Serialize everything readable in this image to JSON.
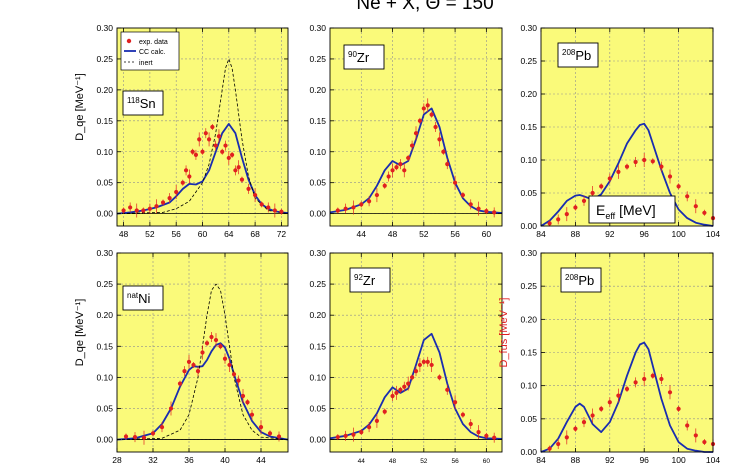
{
  "figure": {
    "title": "Ne + X, Θ = 150",
    "legend": {
      "data_label": "exp. data",
      "cc_label": "CC calc.",
      "inert_label": "inert"
    },
    "colors": {
      "panel_bg": "#fafa7a",
      "data": "#e02020",
      "cc": "#1a2db0",
      "inert": "#000000",
      "grid": "#8f8f8f"
    }
  },
  "chart_data": [
    {
      "id": "p118sn",
      "type": "line",
      "label": "118Sn",
      "label_parts": [
        "118",
        "Sn"
      ],
      "ylabel": "D_qe [MeV⁻¹]",
      "ylabel_color": "#000000",
      "show_legend": true,
      "xlim": [
        47,
        73
      ],
      "ylim": [
        -0.02,
        0.3
      ],
      "xticks": [
        48,
        52,
        56,
        60,
        64,
        68,
        72
      ],
      "yticks": [
        0.0,
        0.05,
        0.1,
        0.15,
        0.2,
        0.25,
        0.3
      ],
      "grid": true,
      "series": [
        {
          "name": "CC calc.",
          "kind": "line",
          "x": [
            47,
            49,
            51,
            53,
            55,
            56,
            57,
            58,
            59,
            60,
            61,
            62,
            63,
            64,
            65,
            66,
            67,
            68,
            69,
            70,
            71,
            72,
            73
          ],
          "y": [
            0.0,
            0.002,
            0.005,
            0.01,
            0.018,
            0.028,
            0.04,
            0.048,
            0.047,
            0.052,
            0.07,
            0.1,
            0.13,
            0.145,
            0.13,
            0.09,
            0.055,
            0.03,
            0.015,
            0.008,
            0.004,
            0.002,
            0.001
          ]
        },
        {
          "name": "inert",
          "kind": "dashed",
          "x": [
            47,
            54,
            56,
            58,
            60,
            61,
            62,
            63,
            63.5,
            64,
            64.5,
            65,
            66,
            67,
            68,
            70,
            73
          ],
          "y": [
            0.0,
            0.002,
            0.008,
            0.02,
            0.05,
            0.08,
            0.13,
            0.2,
            0.235,
            0.25,
            0.235,
            0.2,
            0.12,
            0.06,
            0.025,
            0.005,
            0.0
          ]
        },
        {
          "name": "exp. data",
          "kind": "points",
          "x": [
            48,
            49,
            50,
            51,
            52,
            53,
            54,
            55,
            56,
            57,
            57.5,
            58,
            58.5,
            59,
            59.5,
            60,
            60.5,
            61,
            61.5,
            62,
            62.5,
            63,
            63.5,
            64,
            64.5,
            65,
            65.5,
            66,
            67,
            68,
            69,
            70,
            71,
            72
          ],
          "y": [
            0.005,
            0.01,
            0.005,
            0.005,
            0.008,
            0.012,
            0.018,
            0.025,
            0.035,
            0.05,
            0.07,
            0.06,
            0.1,
            0.095,
            0.12,
            0.1,
            0.13,
            0.12,
            0.14,
            0.11,
            0.125,
            0.1,
            0.11,
            0.09,
            0.095,
            0.07,
            0.075,
            0.055,
            0.04,
            0.03,
            0.015,
            0.01,
            0.005,
            0.003
          ]
        }
      ]
    },
    {
      "id": "p90zr",
      "type": "line",
      "label": "90Zr",
      "label_parts": [
        "90",
        "Zr"
      ],
      "ylabel": "",
      "show_legend": false,
      "xlim": [
        40,
        62
      ],
      "ylim": [
        -0.02,
        0.3
      ],
      "xticks": [
        44,
        48,
        52,
        56,
        60
      ],
      "yticks": [
        0.0,
        0.05,
        0.1,
        0.15,
        0.2,
        0.25,
        0.3
      ],
      "grid": true,
      "series": [
        {
          "name": "CC calc.",
          "kind": "line",
          "x": [
            40,
            42,
            44,
            45,
            46,
            47,
            48,
            49,
            50,
            51,
            52,
            53,
            54,
            55,
            56,
            57,
            58,
            59,
            60,
            62
          ],
          "y": [
            0.002,
            0.006,
            0.015,
            0.025,
            0.045,
            0.07,
            0.085,
            0.078,
            0.085,
            0.12,
            0.16,
            0.17,
            0.14,
            0.09,
            0.05,
            0.025,
            0.012,
            0.005,
            0.003,
            0.001
          ]
        },
        {
          "name": "exp. data",
          "kind": "points",
          "x": [
            41,
            42,
            43,
            44,
            45,
            46,
            47,
            47.5,
            48,
            48.5,
            49,
            49.5,
            50,
            50.5,
            51,
            51.5,
            52,
            52.5,
            53,
            53.5,
            54,
            54.5,
            55,
            56,
            57,
            58,
            59,
            60,
            61
          ],
          "y": [
            0.005,
            0.008,
            0.01,
            0.015,
            0.02,
            0.03,
            0.045,
            0.06,
            0.07,
            0.075,
            0.08,
            0.07,
            0.09,
            0.11,
            0.13,
            0.15,
            0.17,
            0.175,
            0.16,
            0.14,
            0.12,
            0.1,
            0.08,
            0.05,
            0.03,
            0.015,
            0.008,
            0.004,
            0.002
          ]
        }
      ]
    },
    {
      "id": "p208pb_top",
      "type": "line",
      "label": "208Pb",
      "label_parts": [
        "208",
        "Pb"
      ],
      "ylabel": "",
      "show_legend": false,
      "energy_label": true,
      "energy_label_parts": [
        "E",
        "eff",
        " [MeV]"
      ],
      "xlim": [
        84,
        104
      ],
      "ylim": [
        0.0,
        0.3
      ],
      "xticks": [
        84,
        88,
        92,
        96,
        100,
        104
      ],
      "yticks": [
        0.0,
        0.05,
        0.1,
        0.15,
        0.2,
        0.25,
        0.3
      ],
      "grid": true,
      "series": [
        {
          "name": "CC calc.",
          "kind": "line",
          "x": [
            84,
            85,
            86,
            87,
            88,
            88.5,
            89,
            90,
            91,
            92,
            93,
            94,
            95,
            95.5,
            96,
            96.5,
            97,
            98,
            99,
            100,
            101,
            102,
            103,
            104
          ],
          "y": [
            0.0,
            0.008,
            0.022,
            0.038,
            0.046,
            0.047,
            0.045,
            0.04,
            0.048,
            0.068,
            0.095,
            0.125,
            0.145,
            0.153,
            0.155,
            0.145,
            0.125,
            0.085,
            0.05,
            0.025,
            0.012,
            0.005,
            0.002,
            0.0
          ]
        },
        {
          "name": "exp. data",
          "kind": "points",
          "x": [
            85,
            86,
            87,
            88,
            89,
            90,
            91,
            92,
            93,
            94,
            95,
            96,
            97,
            98,
            99,
            100,
            101,
            102,
            103,
            104
          ],
          "y": [
            0.004,
            0.01,
            0.018,
            0.028,
            0.038,
            0.05,
            0.06,
            0.072,
            0.082,
            0.09,
            0.097,
            0.1,
            0.098,
            0.09,
            0.075,
            0.06,
            0.045,
            0.03,
            0.02,
            0.012
          ]
        }
      ]
    },
    {
      "id": "pnatni",
      "type": "line",
      "label": "natNi",
      "label_parts": [
        "nat",
        "Ni"
      ],
      "ylabel": "D_qe [MeV⁻¹]",
      "ylabel_color": "#000000",
      "show_legend": false,
      "xlim": [
        28,
        47
      ],
      "ylim": [
        -0.02,
        0.3
      ],
      "xticks": [
        28,
        32,
        36,
        40,
        44
      ],
      "yticks": [
        0.0,
        0.05,
        0.1,
        0.15,
        0.2,
        0.25,
        0.3
      ],
      "grid": true,
      "series": [
        {
          "name": "CC calc.",
          "kind": "line",
          "x": [
            28,
            30,
            32,
            33,
            34,
            35,
            36,
            36.5,
            37,
            37.5,
            38,
            38.5,
            39,
            39.5,
            40,
            40.5,
            41,
            42,
            43,
            44,
            45,
            47
          ],
          "y": [
            0.0,
            0.002,
            0.01,
            0.025,
            0.05,
            0.085,
            0.112,
            0.118,
            0.117,
            0.118,
            0.128,
            0.142,
            0.152,
            0.155,
            0.148,
            0.13,
            0.105,
            0.06,
            0.03,
            0.012,
            0.005,
            0.0
          ]
        },
        {
          "name": "inert",
          "kind": "dashed",
          "x": [
            28,
            33,
            35,
            36,
            37,
            37.5,
            38,
            38.5,
            39,
            39.5,
            40,
            40.5,
            41,
            42,
            43,
            44,
            47
          ],
          "y": [
            0.0,
            0.002,
            0.015,
            0.04,
            0.1,
            0.15,
            0.2,
            0.24,
            0.25,
            0.24,
            0.2,
            0.15,
            0.1,
            0.04,
            0.015,
            0.004,
            0.0
          ]
        },
        {
          "name": "exp. data",
          "kind": "points",
          "x": [
            29,
            30,
            31,
            32,
            33,
            34,
            35,
            35.5,
            36,
            36.5,
            37,
            37.5,
            38,
            38.5,
            39,
            39.5,
            40,
            40.5,
            41,
            41.5,
            42,
            42.5,
            43,
            44,
            45,
            46
          ],
          "y": [
            0.005,
            0.004,
            0.003,
            0.01,
            0.02,
            0.05,
            0.09,
            0.11,
            0.125,
            0.12,
            0.11,
            0.14,
            0.155,
            0.165,
            0.16,
            0.15,
            0.13,
            0.12,
            0.105,
            0.095,
            0.07,
            0.06,
            0.04,
            0.02,
            0.01,
            0.005
          ]
        }
      ]
    },
    {
      "id": "p92zr",
      "type": "line",
      "label": "92Zr",
      "label_parts": [
        "92",
        "Zr"
      ],
      "ylabel": "",
      "show_legend": false,
      "xlim": [
        40,
        62
      ],
      "ylim": [
        -0.02,
        0.3
      ],
      "xticks": [
        44,
        48,
        52,
        56,
        60
      ],
      "yticks": [
        0.0,
        0.05,
        0.1,
        0.15,
        0.2,
        0.25,
        0.3
      ],
      "grid": true,
      "series": [
        {
          "name": "CC calc.",
          "kind": "line",
          "x": [
            40,
            42,
            44,
            45,
            46,
            47,
            48,
            49,
            50,
            51,
            52,
            53,
            54,
            55,
            56,
            57,
            58,
            59,
            60,
            62
          ],
          "y": [
            0.002,
            0.006,
            0.014,
            0.024,
            0.042,
            0.068,
            0.084,
            0.075,
            0.082,
            0.12,
            0.16,
            0.17,
            0.14,
            0.09,
            0.05,
            0.025,
            0.012,
            0.005,
            0.002,
            0.001
          ]
        },
        {
          "name": "exp. data",
          "kind": "points",
          "x": [
            41,
            42,
            43,
            44,
            45,
            46,
            47,
            48,
            48.5,
            49,
            49.5,
            50,
            50.5,
            51,
            51.5,
            52,
            52.5,
            53,
            54,
            55,
            56,
            57,
            58,
            59,
            60,
            61
          ],
          "y": [
            0.004,
            0.006,
            0.008,
            0.012,
            0.02,
            0.03,
            0.045,
            0.07,
            0.075,
            0.08,
            0.085,
            0.09,
            0.1,
            0.11,
            0.12,
            0.125,
            0.125,
            0.12,
            0.1,
            0.08,
            0.06,
            0.04,
            0.025,
            0.012,
            0.006,
            0.003
          ]
        }
      ]
    },
    {
      "id": "p208pb_bot",
      "type": "line",
      "label": "208Pb",
      "label_parts": [
        "208",
        "Pb"
      ],
      "ylabel": "D_fus [MeV⁻¹]",
      "ylabel_color": "#e02020",
      "show_legend": false,
      "xlim": [
        84,
        104
      ],
      "ylim": [
        0.0,
        0.3
      ],
      "xticks": [
        84,
        88,
        92,
        96,
        100,
        104
      ],
      "yticks": [
        0.0,
        0.05,
        0.1,
        0.15,
        0.2,
        0.25,
        0.3
      ],
      "grid": true,
      "series": [
        {
          "name": "CC calc.",
          "kind": "line",
          "x": [
            84,
            85,
            86,
            87,
            88,
            88.5,
            89,
            90,
            91,
            92,
            93,
            94,
            95,
            95.5,
            96,
            96.5,
            97,
            98,
            99,
            100,
            101,
            102,
            103,
            104
          ],
          "y": [
            0.0,
            0.005,
            0.02,
            0.045,
            0.068,
            0.073,
            0.068,
            0.042,
            0.03,
            0.045,
            0.075,
            0.115,
            0.15,
            0.162,
            0.165,
            0.155,
            0.13,
            0.08,
            0.04,
            0.015,
            0.005,
            0.002,
            0.0,
            0.0
          ]
        },
        {
          "name": "exp. data",
          "kind": "points",
          "x": [
            85,
            86,
            87,
            88,
            89,
            90,
            91,
            92,
            93,
            94,
            95,
            96,
            97,
            98,
            99,
            100,
            101,
            102,
            103,
            104
          ],
          "y": [
            0.005,
            0.012,
            0.022,
            0.035,
            0.045,
            0.055,
            0.065,
            0.075,
            0.085,
            0.095,
            0.105,
            0.11,
            0.115,
            0.11,
            0.09,
            0.065,
            0.04,
            0.025,
            0.015,
            0.012
          ]
        }
      ]
    }
  ]
}
